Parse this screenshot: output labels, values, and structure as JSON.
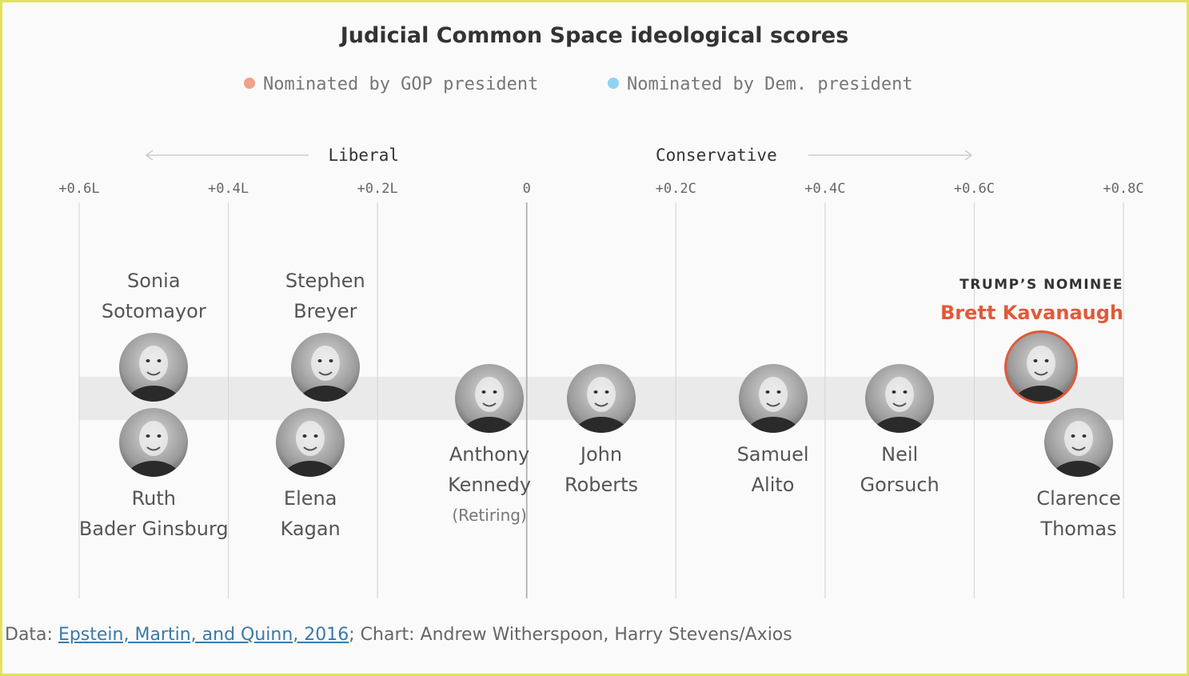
{
  "title": "Judicial Common Space ideological scores",
  "legend": {
    "gop": {
      "label": "Nominated by GOP president",
      "color": "#f2a08a"
    },
    "dem": {
      "label": "Nominated by Dem. president",
      "color": "#8fd3f2"
    }
  },
  "direction": {
    "liberal": "Liberal",
    "conservative": "Conservative"
  },
  "colors": {
    "nominee": "#e05a3a",
    "band": "#eaeaea",
    "grid": "#d8d8d8"
  },
  "chart_data": {
    "type": "scatter",
    "title": "Judicial Common Space ideological scores",
    "xlim": [
      -0.6,
      0.8
    ],
    "ticks": [
      {
        "value": -0.6,
        "label": "+0.6L"
      },
      {
        "value": -0.4,
        "label": "+0.4L"
      },
      {
        "value": -0.2,
        "label": "+0.2L"
      },
      {
        "value": 0,
        "label": "0"
      },
      {
        "value": 0.2,
        "label": "+0.2C"
      },
      {
        "value": 0.4,
        "label": "+0.4C"
      },
      {
        "value": 0.6,
        "label": "+0.6C"
      },
      {
        "value": 0.8,
        "label": "+0.8C"
      }
    ],
    "justices": [
      {
        "name": [
          "Sonia",
          "Sotomayor"
        ],
        "score": -0.5,
        "party": "dem",
        "row": "upper",
        "label_pos": "above"
      },
      {
        "name": [
          "Ruth",
          "Bader Ginsburg"
        ],
        "score": -0.5,
        "party": "dem",
        "row": "lower",
        "label_pos": "below"
      },
      {
        "name": [
          "Stephen",
          "Breyer"
        ],
        "score": -0.27,
        "party": "dem",
        "row": "upper",
        "label_pos": "above"
      },
      {
        "name": [
          "Elena",
          "Kagan"
        ],
        "score": -0.29,
        "party": "dem",
        "row": "lower",
        "label_pos": "below"
      },
      {
        "name": [
          "Anthony",
          "Kennedy"
        ],
        "note": "(Retiring)",
        "score": -0.05,
        "party": "gop",
        "row": "center",
        "label_pos": "below"
      },
      {
        "name": [
          "John",
          "Roberts"
        ],
        "score": 0.1,
        "party": "gop",
        "row": "center",
        "label_pos": "below"
      },
      {
        "name": [
          "Samuel",
          "Alito"
        ],
        "score": 0.33,
        "party": "gop",
        "row": "center",
        "label_pos": "below"
      },
      {
        "name": [
          "Neil",
          "Gorsuch"
        ],
        "score": 0.5,
        "party": "gop",
        "row": "center",
        "label_pos": "below"
      },
      {
        "name": [
          "Brett Kavanaugh"
        ],
        "tag": "TRUMP’S NOMINEE",
        "score": 0.69,
        "party": "gop",
        "row": "upper",
        "label_pos": "above",
        "nominee": true
      },
      {
        "name": [
          "Clarence",
          "Thomas"
        ],
        "score": 0.74,
        "party": "gop",
        "row": "lower",
        "label_pos": "below"
      }
    ]
  },
  "source": {
    "prefix": "Data: ",
    "link": "Epstein, Martin, and Quinn, 2016",
    "suffix": "; Chart: Andrew Witherspoon, Harry Stevens/Axios"
  }
}
